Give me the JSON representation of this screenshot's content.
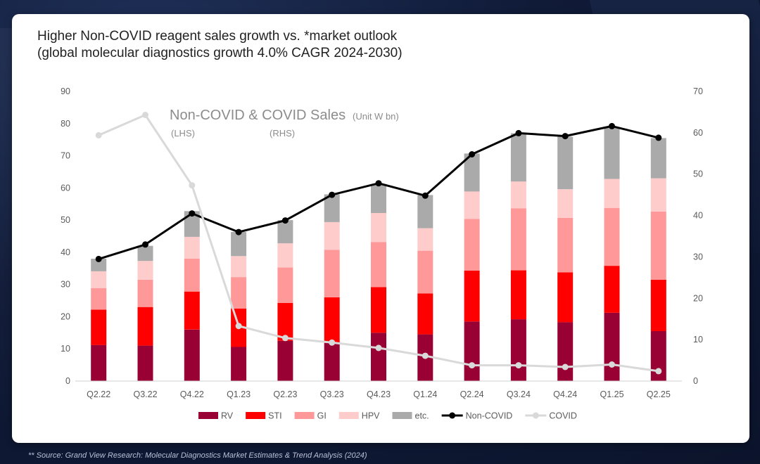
{
  "title": {
    "line1": "Higher Non-COVID reagent sales growth vs. *market outlook",
    "line2": "(global molecular diagnostics growth 4.0% CAGR 2024-2030)"
  },
  "source": "** Source: Grand View Research: Molecular Diagnostics Market Estimates & Trend Analysis (2024)",
  "chart_data": {
    "type": "bar",
    "title": "Non-COVID & COVID Sales",
    "unit_note": "(Unit W bn)",
    "lhs_label": "(LHS)",
    "rhs_label": "(RHS)",
    "categories": [
      "Q2.22",
      "Q3.22",
      "Q4.22",
      "Q1.23",
      "Q2.23",
      "Q3.23",
      "Q4.23",
      "Q1.24",
      "Q2.24",
      "Q3.24",
      "Q4.24",
      "Q1.25",
      "Q2.25"
    ],
    "stacked": true,
    "ylim": [
      0,
      90
    ],
    "yticks": [
      "0",
      "10",
      "20",
      "30",
      "40",
      "50",
      "60",
      "70",
      "80",
      "90"
    ],
    "y2lim": [
      0,
      70
    ],
    "y2ticks": [
      "0",
      "10",
      "20",
      "30",
      "40",
      "50",
      "60",
      "70"
    ],
    "grid": false,
    "legend_position": "bottom",
    "series": [
      {
        "name": "RV",
        "color": "#990033",
        "axis": "left",
        "values": [
          11.2,
          11.0,
          16.0,
          10.6,
          12.5,
          11.8,
          15.0,
          14.5,
          18.5,
          19.2,
          18.3,
          21.2,
          15.5
        ]
      },
      {
        "name": "STI",
        "color": "#ff0000",
        "axis": "left",
        "values": [
          11.0,
          12.0,
          11.8,
          11.9,
          11.8,
          14.2,
          14.2,
          12.7,
          15.8,
          15.2,
          15.5,
          14.6,
          16.0
        ]
      },
      {
        "name": "GI",
        "color": "#ff9999",
        "axis": "left",
        "values": [
          6.7,
          8.5,
          10.2,
          9.8,
          11.0,
          14.8,
          14.0,
          13.3,
          16.1,
          19.3,
          16.9,
          18.0,
          21.2
        ]
      },
      {
        "name": "HPV",
        "color": "#ffcccc",
        "axis": "left",
        "values": [
          5.2,
          5.8,
          6.8,
          6.5,
          7.5,
          8.6,
          9.0,
          7.0,
          8.5,
          8.3,
          8.9,
          9.0,
          10.3
        ]
      },
      {
        "name": "etc.",
        "color": "#aaaaaa",
        "axis": "left",
        "values": [
          3.9,
          4.7,
          8.0,
          7.5,
          7.2,
          8.6,
          9.0,
          10.3,
          11.8,
          15.0,
          16.3,
          15.9,
          12.5
        ]
      },
      {
        "name": "Non-COVID",
        "color": "#000000",
        "axis": "right",
        "type": "line",
        "values": [
          29.5,
          33.0,
          40.5,
          36.0,
          38.8,
          45.0,
          47.8,
          44.8,
          54.8,
          59.9,
          59.2,
          61.6,
          58.8
        ]
      },
      {
        "name": "COVID",
        "color": "#d9d9d9",
        "axis": "right",
        "type": "line",
        "values": [
          59.4,
          64.3,
          47.3,
          13.3,
          10.4,
          9.3,
          8.0,
          6.1,
          3.8,
          3.8,
          3.4,
          4.0,
          2.4
        ]
      }
    ]
  }
}
